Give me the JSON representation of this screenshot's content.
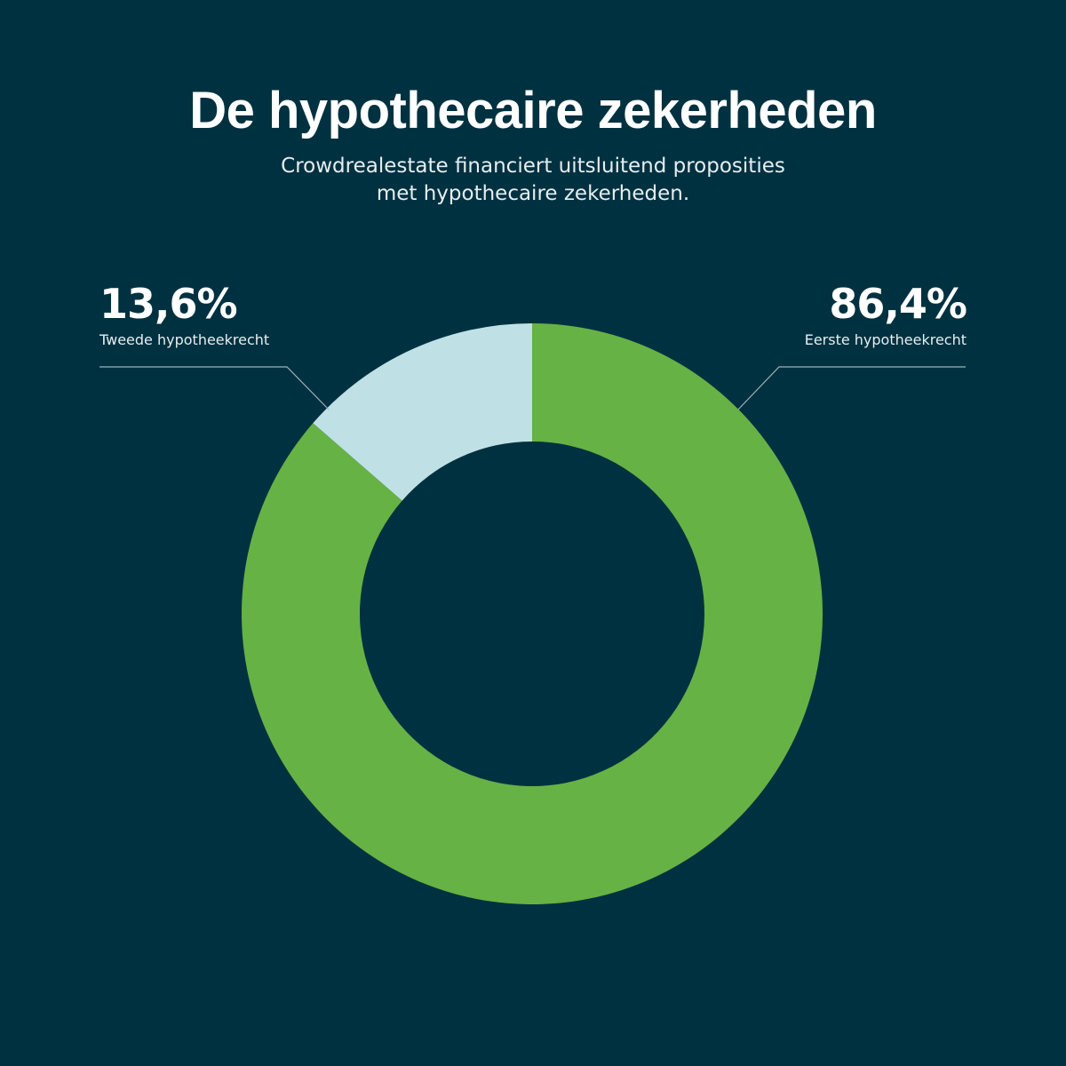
{
  "title": "De hypothecaire zekerheden",
  "subtitle_line1": "Crowdrealestate financiert uitsluitend proposities",
  "subtitle_line2": "met hypothecaire zekerheden.",
  "colors": {
    "background": "#003140",
    "green": "#66b245",
    "light_blue": "#bfe1e6",
    "leader_line": "#9fb3b8"
  },
  "chart_data": {
    "type": "pie",
    "donut": true,
    "slices": [
      {
        "label": "Eerste hypotheekrecht",
        "value": 86.4,
        "value_label": "86,4%",
        "color": "#66b245"
      },
      {
        "label": "Tweede hypotheekrecht",
        "value": 13.6,
        "value_label": "13,6%",
        "color": "#bfe1e6"
      }
    ]
  }
}
